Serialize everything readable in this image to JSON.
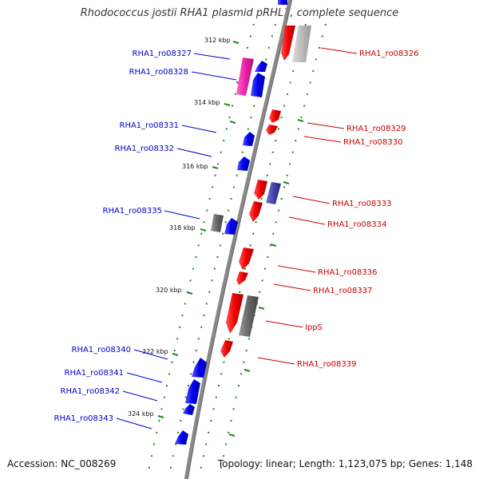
{
  "title": "Rhodococcus jostii RHA1 plasmid pRHL1, complete sequence",
  "footer": {
    "accession": "Accession: NC_008269",
    "stats": "Topology: linear; Length: 1,123,075 bp; Genes: 1,148"
  },
  "colors": {
    "forward_strand": "#0000ee",
    "reverse_strand": "#ee0000",
    "backbone": "#888888",
    "ticks": "#228822",
    "pink_gene": "#ee22aa",
    "dark_gray_gene": "#666666",
    "light_gray_gene": "#bbbbbb",
    "navy_gene": "#4444aa"
  },
  "ticks": [
    {
      "label": "312 kbp"
    },
    {
      "label": "314 kbp"
    },
    {
      "label": "316 kbp"
    },
    {
      "label": "318 kbp"
    },
    {
      "label": "320 kbp"
    },
    {
      "label": "322 kbp"
    },
    {
      "label": "324 kbp"
    }
  ],
  "genes_left": [
    {
      "label": "RHA1_ro08327"
    },
    {
      "label": "RHA1_ro08328"
    },
    {
      "label": "RHA1_ro08331"
    },
    {
      "label": "RHA1_ro08332"
    },
    {
      "label": "RHA1_ro08335"
    },
    {
      "label": "RHA1_ro08340"
    },
    {
      "label": "RHA1_ro08341"
    },
    {
      "label": "RHA1_ro08342"
    },
    {
      "label": "RHA1_ro08343"
    }
  ],
  "genes_right": [
    {
      "label": "RHA1_ro08326"
    },
    {
      "label": "RHA1_ro08329"
    },
    {
      "label": "RHA1_ro08330"
    },
    {
      "label": "RHA1_ro08333"
    },
    {
      "label": "RHA1_ro08334"
    },
    {
      "label": "RHA1_ro08336"
    },
    {
      "label": "RHA1_ro08337"
    },
    {
      "label": "IppS"
    },
    {
      "label": "RHA1_ro08339"
    }
  ]
}
